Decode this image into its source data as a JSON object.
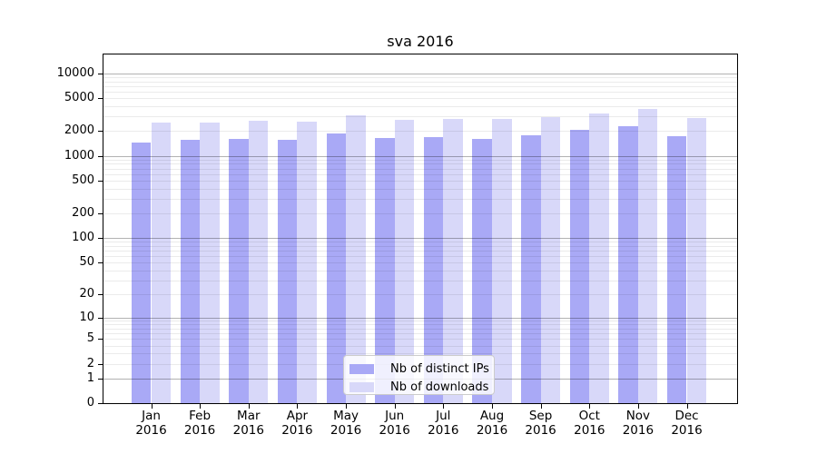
{
  "chart_data": {
    "type": "bar",
    "title": "sva 2016",
    "categories": [
      "Jan",
      "Feb",
      "Mar",
      "Apr",
      "May",
      "Jun",
      "Jul",
      "Aug",
      "Sep",
      "Oct",
      "Nov",
      "Dec"
    ],
    "x_tick_second_line": "2016",
    "series": [
      {
        "name": "Nb of distinct IPs",
        "color": "#a9a9f6",
        "values": [
          1460,
          1550,
          1620,
          1580,
          1860,
          1650,
          1690,
          1610,
          1770,
          2060,
          2320,
          1740
        ]
      },
      {
        "name": "Nb of downloads",
        "color": "#d8d8f9",
        "values": [
          2540,
          2540,
          2650,
          2580,
          3140,
          2720,
          2790,
          2810,
          2960,
          3300,
          3720,
          2860
        ]
      }
    ],
    "y_axis": {
      "scale": "log10(1+y)",
      "ticks": [
        0,
        1,
        2,
        5,
        10,
        20,
        50,
        100,
        200,
        500,
        1000,
        2000,
        5000,
        10000
      ],
      "top_value": 16900
    },
    "grid": {
      "major_at": [
        1,
        10,
        100,
        1000,
        10000
      ],
      "minor_multiples": [
        2,
        3,
        4,
        5,
        6,
        7,
        8,
        9
      ],
      "major_color": "rgba(0,0,0,0.30)",
      "minor_color": "rgba(0,0,0,0.08)"
    },
    "legend": {
      "position": "lower-center-inside"
    }
  }
}
